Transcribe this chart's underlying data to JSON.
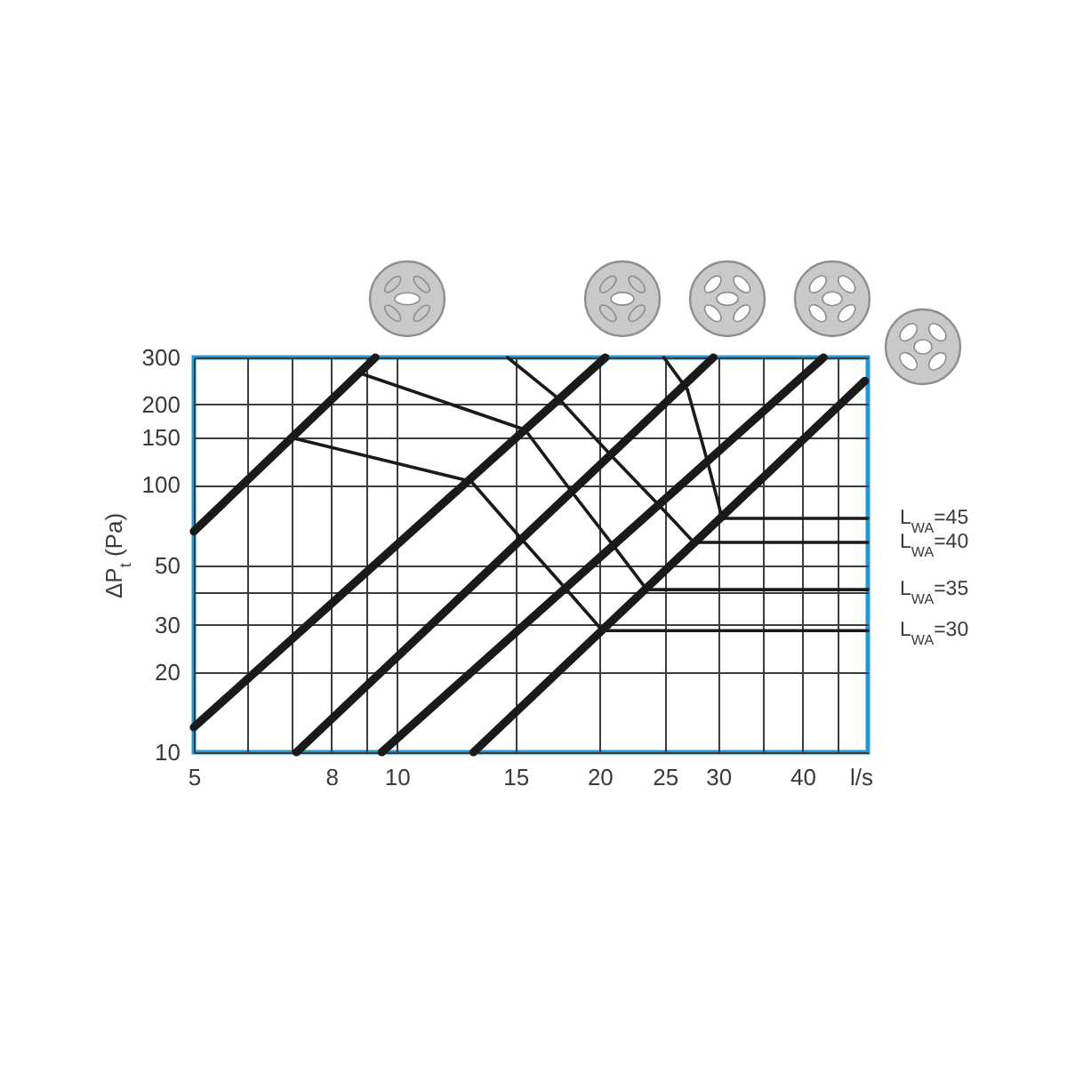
{
  "chart_data": {
    "type": "line",
    "xlabel": "l/s",
    "ylabel": "ΔP$_{t}$ (Pa)",
    "log": "xy",
    "xlim": [
      5,
      50
    ],
    "ylim": [
      10,
      300
    ],
    "xticks": [
      5,
      {
        "value": 6,
        "label": null
      },
      {
        "value": 7,
        "label": null
      },
      8,
      {
        "value": 9,
        "label": null
      },
      10,
      15,
      20,
      25,
      30,
      {
        "value": 35,
        "label": null
      },
      40,
      {
        "value": 45,
        "label": null
      }
    ],
    "yticks": [
      10,
      20,
      30,
      {
        "value": 40,
        "label": null
      },
      50,
      100,
      150,
      200,
      300
    ],
    "grid": true,
    "series": [
      {
        "color": "#1a1a1a",
        "x": [
          5,
          9.3
        ],
        "values": [
          67,
          300
        ]
      },
      {
        "color": "#1a1a1a",
        "x": [
          5,
          20.4
        ],
        "values": [
          12.4,
          300
        ]
      },
      {
        "color": "#1a1a1a",
        "x": [
          7.1,
          29.5
        ],
        "values": [
          10,
          300
        ]
      },
      {
        "color": "#1a1a1a",
        "x": [
          9.5,
          43
        ],
        "values": [
          10,
          300
        ]
      },
      {
        "color": "#1a1a1a",
        "x": [
          13,
          49.5
        ],
        "values": [
          10,
          245
        ]
      },
      {
        "name": "L$_{WA}$=45",
        "color": "#1a1a1a",
        "x": [
          24.9,
          27,
          29,
          30.4,
          50
        ],
        "values": [
          300,
          227,
          119,
          75,
          75
        ]
      },
      {
        "name": "L$_{WA}$=40",
        "color": "#1a1a1a",
        "x": [
          14.6,
          17.4,
          20.8,
          24.5,
          27.6,
          50
        ],
        "values": [
          300,
          210,
          129,
          84,
          61,
          61
        ]
      },
      {
        "name": "L$_{WA}$=35",
        "color": "#1a1a1a",
        "x": [
          8.9,
          15.5,
          18.2,
          21,
          23.5,
          50
        ],
        "values": [
          260,
          161,
          94,
          59,
          40.6,
          40.6
        ]
      },
      {
        "name": "L$_{WA}$=30",
        "color": "#1a1a1a",
        "x": [
          7,
          12.9,
          15.3,
          17.8,
          20.2,
          50
        ],
        "values": [
          150,
          103,
          63,
          41,
          28.5,
          28.5
        ]
      }
    ]
  }
}
